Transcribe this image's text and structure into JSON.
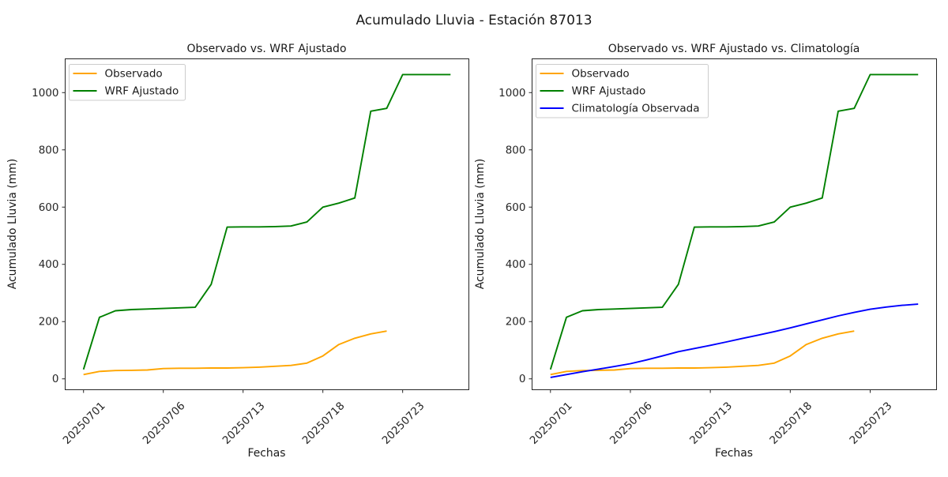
{
  "figure": {
    "suptitle": "Acumulado Lluvia - Estación 87013"
  },
  "chart_data": [
    {
      "type": "line",
      "title": "Observado vs. WRF Ajustado",
      "xlabel": "Fechas",
      "ylabel": "Acumulado Lluvia (mm)",
      "x_tick_positions": [
        0,
        5,
        10,
        15,
        20
      ],
      "x_tick_labels": [
        "20250701",
        "20250706",
        "20250713",
        "20250718",
        "20250723"
      ],
      "y_ticks": [
        0,
        200,
        400,
        600,
        800,
        1000
      ],
      "xlim": [
        -1.15,
        24.15
      ],
      "ylim": [
        -38,
        1118
      ],
      "grid": false,
      "legend_position": "upper left",
      "series": [
        {
          "name": "Observado",
          "color": "#FFA500",
          "values": [
            15,
            26,
            29,
            30,
            31,
            36,
            37,
            37,
            38,
            38,
            39,
            41,
            44,
            47,
            55,
            80,
            120,
            142,
            157,
            167
          ]
        },
        {
          "name": "WRF Ajustado",
          "color": "#008000",
          "values": [
            33,
            215,
            238,
            242,
            244,
            246,
            248,
            250,
            330,
            530,
            531,
            531,
            532,
            534,
            548,
            600,
            614,
            632,
            935,
            945,
            1063,
            1063,
            1063,
            1063
          ]
        }
      ]
    },
    {
      "type": "line",
      "title": "Observado vs. WRF Ajustado vs. Climatología",
      "xlabel": "Fechas",
      "ylabel": "Acumulado Lluvia (mm)",
      "x_tick_positions": [
        0,
        5,
        10,
        15,
        20
      ],
      "x_tick_labels": [
        "20250701",
        "20250706",
        "20250713",
        "20250718",
        "20250723"
      ],
      "y_ticks": [
        0,
        200,
        400,
        600,
        800,
        1000
      ],
      "xlim": [
        -1.15,
        24.15
      ],
      "ylim": [
        -38,
        1118
      ],
      "grid": false,
      "legend_position": "upper left",
      "series": [
        {
          "name": "Observado",
          "color": "#FFA500",
          "values": [
            15,
            26,
            29,
            30,
            31,
            36,
            37,
            37,
            38,
            38,
            39,
            41,
            44,
            47,
            55,
            80,
            120,
            142,
            157,
            167
          ]
        },
        {
          "name": "WRF Ajustado",
          "color": "#008000",
          "values": [
            33,
            215,
            238,
            242,
            244,
            246,
            248,
            250,
            330,
            530,
            531,
            531,
            532,
            534,
            548,
            600,
            614,
            632,
            935,
            945,
            1063,
            1063,
            1063,
            1063
          ]
        },
        {
          "name": "Climatología Observada",
          "color": "#0000FF",
          "values": [
            5,
            15,
            25,
            34,
            43,
            53,
            66,
            80,
            95,
            106,
            117,
            129,
            141,
            153,
            165,
            178,
            192,
            206,
            220,
            232,
            243,
            251,
            257,
            261
          ]
        }
      ]
    }
  ]
}
